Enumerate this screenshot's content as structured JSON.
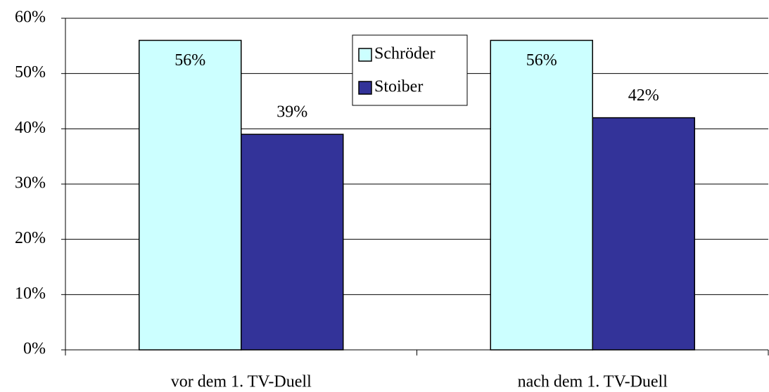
{
  "chart_data": {
    "type": "bar",
    "categories": [
      "vor dem 1. TV-Duell",
      "nach dem 1. TV-Duell"
    ],
    "series": [
      {
        "name": "Schröder",
        "color": "#ccffff",
        "values": [
          56,
          56
        ],
        "value_labels": [
          "56%",
          "56%"
        ]
      },
      {
        "name": "Stoiber",
        "color": "#333399",
        "values": [
          39,
          42
        ],
        "value_labels": [
          "39%",
          "42%"
        ]
      }
    ],
    "ylim": [
      0,
      60
    ],
    "yticks": [
      {
        "value": 0,
        "label": "0%"
      },
      {
        "value": 10,
        "label": "10%"
      },
      {
        "value": 20,
        "label": "20%"
      },
      {
        "value": 30,
        "label": "30%"
      },
      {
        "value": 40,
        "label": "40%"
      },
      {
        "value": 50,
        "label": "50%"
      },
      {
        "value": 60,
        "label": "60%"
      }
    ],
    "grid": true,
    "legend": "top"
  }
}
